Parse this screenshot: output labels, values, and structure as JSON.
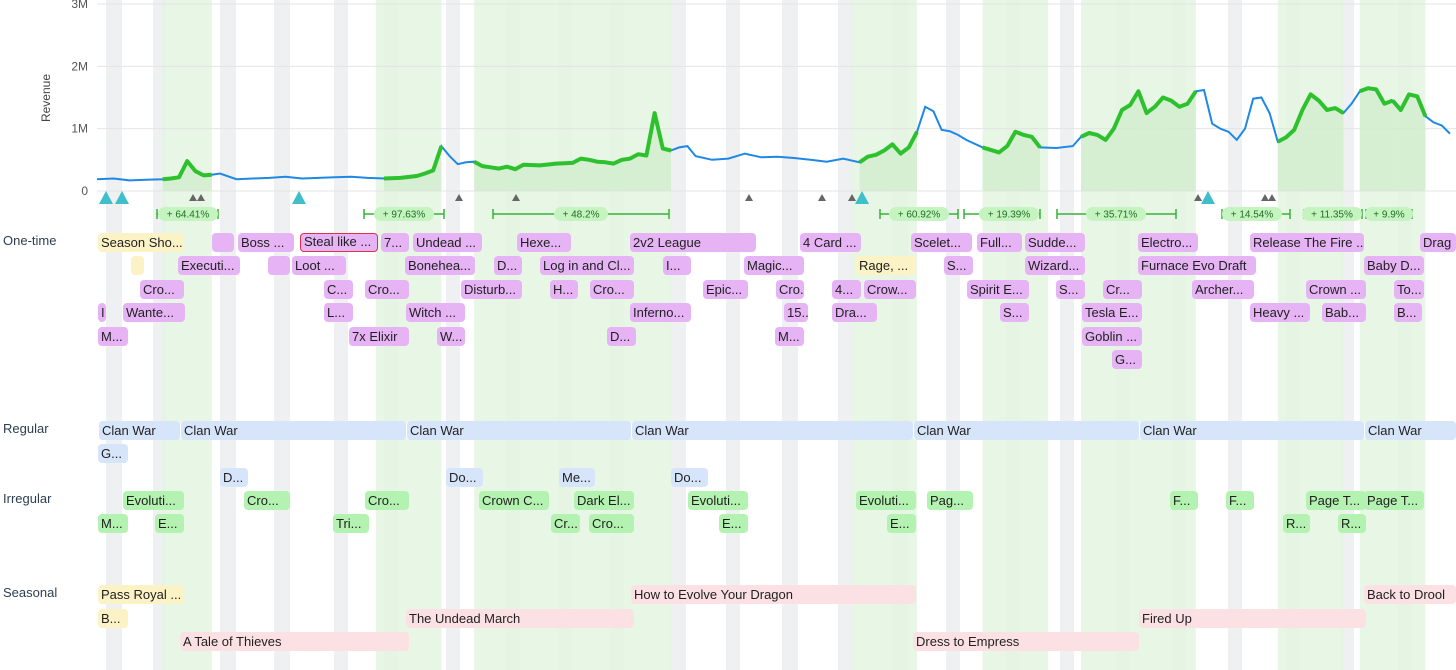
{
  "chart_data": {
    "type": "line",
    "title": "",
    "ylabel": "Revenue",
    "ylim": [
      0,
      3000000
    ],
    "yticks": [
      "0",
      "1M",
      "2M",
      "3M"
    ],
    "grid": true,
    "series": [
      {
        "name": "",
        "points": [
          [
            0,
            190
          ],
          [
            2,
            200
          ],
          [
            4,
            170
          ],
          [
            6,
            180
          ],
          [
            8,
            190
          ],
          [
            9,
            200
          ],
          [
            10,
            220
          ],
          [
            11,
            480
          ],
          [
            12,
            320
          ],
          [
            13,
            250
          ],
          [
            14,
            260
          ],
          [
            15,
            280
          ],
          [
            17,
            190
          ],
          [
            19,
            200
          ],
          [
            21,
            210
          ],
          [
            23,
            230
          ],
          [
            25,
            200
          ],
          [
            27,
            210
          ],
          [
            29,
            220
          ],
          [
            31,
            230
          ],
          [
            33,
            210
          ],
          [
            35,
            200
          ],
          [
            37,
            210
          ],
          [
            39,
            240
          ],
          [
            40,
            280
          ],
          [
            41,
            330
          ],
          [
            42,
            720
          ],
          [
            43,
            560
          ],
          [
            44,
            430
          ],
          [
            45,
            460
          ],
          [
            46,
            470
          ],
          [
            47,
            400
          ],
          [
            48,
            380
          ],
          [
            49,
            360
          ],
          [
            50,
            390
          ],
          [
            51,
            350
          ],
          [
            52,
            420
          ],
          [
            54,
            410
          ],
          [
            56,
            440
          ],
          [
            58,
            450
          ],
          [
            59,
            520
          ],
          [
            60,
            500
          ],
          [
            61,
            470
          ],
          [
            62,
            460
          ],
          [
            63,
            440
          ],
          [
            64,
            500
          ],
          [
            65,
            520
          ],
          [
            66,
            590
          ],
          [
            67,
            570
          ],
          [
            68,
            1250
          ],
          [
            69,
            680
          ],
          [
            70,
            650
          ],
          [
            71,
            700
          ],
          [
            72,
            720
          ],
          [
            73,
            560
          ],
          [
            75,
            500
          ],
          [
            77,
            520
          ],
          [
            79,
            600
          ],
          [
            81,
            540
          ],
          [
            83,
            550
          ],
          [
            85,
            530
          ],
          [
            87,
            500
          ],
          [
            89,
            470
          ],
          [
            91,
            520
          ],
          [
            93,
            460
          ],
          [
            94,
            550
          ],
          [
            95,
            580
          ],
          [
            96,
            650
          ],
          [
            97,
            750
          ],
          [
            98,
            600
          ],
          [
            99,
            700
          ],
          [
            100,
            950
          ],
          [
            101,
            1350
          ],
          [
            102,
            1280
          ],
          [
            103,
            980
          ],
          [
            104,
            960
          ],
          [
            105,
            900
          ],
          [
            106,
            820
          ],
          [
            108,
            700
          ],
          [
            110,
            620
          ],
          [
            111,
            720
          ],
          [
            112,
            950
          ],
          [
            113,
            900
          ],
          [
            114,
            870
          ],
          [
            115,
            700
          ],
          [
            117,
            690
          ],
          [
            119,
            720
          ],
          [
            120,
            870
          ],
          [
            121,
            930
          ],
          [
            122,
            900
          ],
          [
            123,
            820
          ],
          [
            124,
            1000
          ],
          [
            125,
            1300
          ],
          [
            126,
            1380
          ],
          [
            127,
            1600
          ],
          [
            128,
            1250
          ],
          [
            129,
            1350
          ],
          [
            130,
            1500
          ],
          [
            131,
            1450
          ],
          [
            132,
            1350
          ],
          [
            133,
            1400
          ],
          [
            134,
            1600
          ],
          [
            135,
            1620
          ],
          [
            136,
            1080
          ],
          [
            137,
            1000
          ],
          [
            138,
            950
          ],
          [
            139,
            820
          ],
          [
            140,
            1000
          ],
          [
            141,
            1480
          ],
          [
            142,
            1500
          ],
          [
            143,
            1250
          ],
          [
            144,
            790
          ],
          [
            145,
            860
          ],
          [
            146,
            980
          ],
          [
            147,
            1300
          ],
          [
            148,
            1550
          ],
          [
            149,
            1450
          ],
          [
            150,
            1300
          ],
          [
            151,
            1330
          ],
          [
            152,
            1250
          ],
          [
            153,
            1400
          ],
          [
            154,
            1600
          ],
          [
            155,
            1650
          ],
          [
            156,
            1630
          ],
          [
            157,
            1400
          ],
          [
            158,
            1450
          ],
          [
            159,
            1300
          ],
          [
            160,
            1550
          ],
          [
            161,
            1520
          ],
          [
            162,
            1200
          ],
          [
            163,
            1100
          ],
          [
            164,
            1050
          ],
          [
            165,
            920
          ]
        ]
      }
    ],
    "highlight_ranges": [
      [
        8,
        14
      ],
      [
        34,
        42
      ],
      [
        46,
        70
      ],
      [
        92,
        100
      ],
      [
        108,
        116
      ],
      [
        120,
        134
      ],
      [
        144,
        152
      ],
      [
        154,
        158
      ],
      [
        158,
        162
      ]
    ],
    "growth_labels": [
      "+ 64.41%",
      "+ 97.63%",
      "+ 48.2%",
      "+ 60.92%",
      "+ 19.39%",
      "+ 35.71%",
      "+ 14.54%",
      "+ 11.35%",
      "+ 9.9%"
    ]
  },
  "sections": {
    "one_time": "One-time",
    "regular": "Regular",
    "irregular": "Irregular",
    "seasonal": "Seasonal"
  },
  "colors": {
    "line_base": "#1e88e5",
    "line_highlight": "#2dc12d",
    "band_green": "#e3f4e1",
    "band_gray": "#eef0f2",
    "purple": "#e6b4f5",
    "yellow": "#fbf3c6",
    "blue": "#d7e5fb",
    "green": "#b4f2b1",
    "pink": "#fbe1e3",
    "triangle_teal": "#3fbecb",
    "triangle_gray": "#666666"
  },
  "events": {
    "one_time": [
      {
        "label": "Season Sho..."
      },
      {
        "label": ""
      },
      {
        "label": "Boss ..."
      },
      {
        "label": "Steal like ..."
      },
      {
        "label": "7..."
      },
      {
        "label": "Undead ..."
      },
      {
        "label": "Hexe..."
      },
      {
        "label": "2v2 League"
      },
      {
        "label": "4 Card ..."
      },
      {
        "label": "Scelet..."
      },
      {
        "label": "Full..."
      },
      {
        "label": "Sudde..."
      },
      {
        "label": "Electro..."
      },
      {
        "label": "Release The Fire ..."
      },
      {
        "label": "Drag"
      },
      {
        "label": ""
      },
      {
        "label": "Executi..."
      },
      {
        "label": ""
      },
      {
        "label": "Loot ..."
      },
      {
        "label": "Bonehea..."
      },
      {
        "label": "D..."
      },
      {
        "label": "Log in and Cl..."
      },
      {
        "label": "I..."
      },
      {
        "label": "Magic..."
      },
      {
        "label": "Rage, ..."
      },
      {
        "label": "S..."
      },
      {
        "label": "Wizard..."
      },
      {
        "label": "Furnace Evo Draft"
      },
      {
        "label": "Baby D..."
      },
      {
        "label": "Cro..."
      },
      {
        "label": "C..."
      },
      {
        "label": "Cro..."
      },
      {
        "label": "Disturb..."
      },
      {
        "label": "H..."
      },
      {
        "label": "Cro..."
      },
      {
        "label": "Epic..."
      },
      {
        "label": "Cro..."
      },
      {
        "label": "4..."
      },
      {
        "label": "Crow..."
      },
      {
        "label": "Spirit E..."
      },
      {
        "label": "S..."
      },
      {
        "label": "Cr..."
      },
      {
        "label": "Archer..."
      },
      {
        "label": "Crown ..."
      },
      {
        "label": "To..."
      },
      {
        "label": "I"
      },
      {
        "label": "Wante..."
      },
      {
        "label": "L..."
      },
      {
        "label": "Witch ..."
      },
      {
        "label": "Inferno..."
      },
      {
        "label": "15..."
      },
      {
        "label": "Dra..."
      },
      {
        "label": "S..."
      },
      {
        "label": "Tesla E..."
      },
      {
        "label": "Heavy ..."
      },
      {
        "label": "Bab..."
      },
      {
        "label": "B..."
      },
      {
        "label": "M..."
      },
      {
        "label": "7x Elixir"
      },
      {
        "label": "W..."
      },
      {
        "label": "D..."
      },
      {
        "label": "M..."
      },
      {
        "label": "Goblin ..."
      },
      {
        "label": "G..."
      }
    ],
    "regular": [
      {
        "label": "Clan War"
      },
      {
        "label": "Clan War"
      },
      {
        "label": "Clan War"
      },
      {
        "label": "Clan War"
      },
      {
        "label": "Clan War"
      },
      {
        "label": "Clan War"
      },
      {
        "label": "Clan War"
      },
      {
        "label": "G..."
      },
      {
        "label": "D..."
      },
      {
        "label": "Do..."
      },
      {
        "label": "Me..."
      },
      {
        "label": "Do..."
      }
    ],
    "irregular": [
      {
        "label": "Evoluti..."
      },
      {
        "label": "Cro..."
      },
      {
        "label": "Cro..."
      },
      {
        "label": "Crown C..."
      },
      {
        "label": "Dark El..."
      },
      {
        "label": "Evoluti..."
      },
      {
        "label": "Evoluti..."
      },
      {
        "label": "Pag..."
      },
      {
        "label": "F..."
      },
      {
        "label": "F..."
      },
      {
        "label": "Page T..."
      },
      {
        "label": "Page T..."
      },
      {
        "label": "M..."
      },
      {
        "label": "E..."
      },
      {
        "label": "Tri..."
      },
      {
        "label": "Cr..."
      },
      {
        "label": "Cro..."
      },
      {
        "label": "E..."
      },
      {
        "label": "E..."
      },
      {
        "label": "R..."
      },
      {
        "label": "R..."
      }
    ],
    "seasonal": [
      {
        "label": "Pass Royal ..."
      },
      {
        "label": "How to Evolve Your Dragon"
      },
      {
        "label": "Back to Drool"
      },
      {
        "label": "B..."
      },
      {
        "label": "The Undead March"
      },
      {
        "label": "Fired Up"
      },
      {
        "label": "A Tale of Thieves"
      },
      {
        "label": "Dress to Empress"
      }
    ]
  }
}
